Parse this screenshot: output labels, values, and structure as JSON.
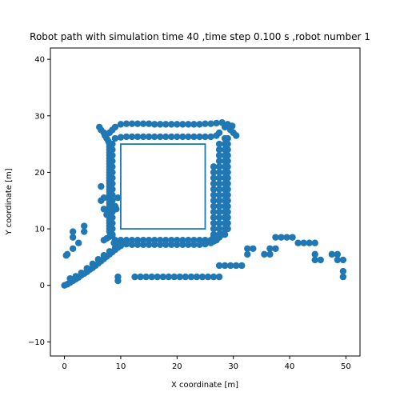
{
  "chart_data": {
    "type": "scatter",
    "title": "Robot path with simulation time 40 ,time step 0.100 s ,robot number 1",
    "xlabel": "X coordinate [m]",
    "ylabel": "Y coordinate [m]",
    "xlim": [
      -2.5,
      52.5
    ],
    "ylim": [
      -12.5,
      42
    ],
    "xticks": [
      0,
      10,
      20,
      30,
      40,
      50
    ],
    "yticks": [
      -10,
      0,
      10,
      20,
      30,
      40
    ],
    "colors": {
      "points": "#1f77b4",
      "obstacle": "#1f77b4",
      "axes": "#000000"
    },
    "obstacle": {
      "x0": 10,
      "y0": 10,
      "x1": 25,
      "y1": 25
    },
    "series": [
      {
        "name": "robot path",
        "points": [
          [
            0,
            0
          ],
          [
            0.5,
            0.2
          ],
          [
            1,
            0.5
          ],
          [
            1.5,
            0.8
          ],
          [
            2,
            1.1
          ],
          [
            2.5,
            1.4
          ],
          [
            3,
            1.8
          ],
          [
            3.5,
            2.1
          ],
          [
            4,
            2.4
          ],
          [
            4.5,
            2.8
          ],
          [
            5,
            3.1
          ],
          [
            5.5,
            3.5
          ],
          [
            6,
            3.9
          ],
          [
            6.5,
            4.3
          ],
          [
            7,
            4.7
          ],
          [
            7.5,
            5.1
          ],
          [
            8,
            5.5
          ],
          [
            8.5,
            5.9
          ],
          [
            9,
            6.3
          ],
          [
            9.5,
            6.7
          ],
          [
            10,
            7
          ],
          [
            9.2,
            7.2
          ],
          [
            9.3,
            7.8
          ],
          [
            8.8,
            7.5
          ],
          [
            0.5,
            5.5
          ],
          [
            1.5,
            6.5
          ],
          [
            2.5,
            7.5
          ],
          [
            1.5,
            8.5
          ],
          [
            1.5,
            9.5
          ],
          [
            3.5,
            9.5
          ],
          [
            3.5,
            10.5
          ],
          [
            0.3,
            5.3
          ],
          [
            1,
            1.2
          ],
          [
            2,
            1.6
          ],
          [
            3,
            2.2
          ],
          [
            4,
            3
          ],
          [
            5,
            3.8
          ],
          [
            6,
            4.6
          ],
          [
            7,
            5.3
          ],
          [
            8,
            6
          ],
          [
            9,
            6.6
          ],
          [
            7,
            8
          ],
          [
            7.5,
            8.3
          ],
          [
            8,
            8.6
          ],
          [
            8.5,
            8.8
          ],
          [
            8,
            9.5
          ],
          [
            8,
            10
          ],
          [
            8,
            10.5
          ],
          [
            8,
            11
          ],
          [
            8,
            11.5
          ],
          [
            8,
            12
          ],
          [
            8,
            12.5
          ],
          [
            8,
            13
          ],
          [
            8,
            13.5
          ],
          [
            8,
            14
          ],
          [
            8,
            14.5
          ],
          [
            8,
            15
          ],
          [
            8,
            15.5
          ],
          [
            8,
            16
          ],
          [
            8,
            16.5
          ],
          [
            8,
            17
          ],
          [
            8,
            17.5
          ],
          [
            8,
            18
          ],
          [
            8,
            18.5
          ],
          [
            8,
            19
          ],
          [
            8,
            19.5
          ],
          [
            8,
            20
          ],
          [
            8,
            20.5
          ],
          [
            8,
            21
          ],
          [
            8,
            21.5
          ],
          [
            8,
            22
          ],
          [
            8,
            22.5
          ],
          [
            8,
            23
          ],
          [
            8,
            23.5
          ],
          [
            8,
            24
          ],
          [
            8,
            24.5
          ],
          [
            8,
            25
          ],
          [
            7.8,
            25.5
          ],
          [
            7.5,
            26
          ],
          [
            7.2,
            26.5
          ],
          [
            7,
            27
          ],
          [
            6.5,
            27.5
          ],
          [
            6.2,
            28
          ],
          [
            8.5,
            9
          ],
          [
            8.5,
            10
          ],
          [
            8.5,
            11
          ],
          [
            8.5,
            12
          ],
          [
            8.5,
            13
          ],
          [
            8.5,
            14
          ],
          [
            8.5,
            15
          ],
          [
            8.5,
            16
          ],
          [
            8.5,
            17
          ],
          [
            8.5,
            18
          ],
          [
            8.5,
            19
          ],
          [
            8.5,
            20
          ],
          [
            8.5,
            21
          ],
          [
            8.5,
            22
          ],
          [
            8.5,
            23
          ],
          [
            8.5,
            24
          ],
          [
            8.5,
            25
          ],
          [
            7.5,
            12.5
          ],
          [
            7,
            13.5
          ],
          [
            6.5,
            15
          ],
          [
            7,
            15.5
          ],
          [
            9,
            14
          ],
          [
            9.5,
            15.5
          ],
          [
            9.2,
            13.5
          ],
          [
            6.5,
            17.5
          ],
          [
            9,
            26
          ],
          [
            10,
            26.2
          ],
          [
            11,
            26.3
          ],
          [
            12,
            26.3
          ],
          [
            13,
            26.3
          ],
          [
            14,
            26.3
          ],
          [
            15,
            26.3
          ],
          [
            16,
            26.3
          ],
          [
            17,
            26.3
          ],
          [
            18,
            26.3
          ],
          [
            19,
            26.3
          ],
          [
            20,
            26.3
          ],
          [
            21,
            26.3
          ],
          [
            22,
            26.3
          ],
          [
            23,
            26.3
          ],
          [
            24,
            26.3
          ],
          [
            25,
            26.3
          ],
          [
            26,
            26.3
          ],
          [
            27,
            26.5
          ],
          [
            27.5,
            27
          ],
          [
            8,
            27
          ],
          [
            8.5,
            27.5
          ],
          [
            9,
            28
          ],
          [
            10,
            28.5
          ],
          [
            11,
            28.6
          ],
          [
            12,
            28.6
          ],
          [
            13,
            28.6
          ],
          [
            14,
            28.6
          ],
          [
            15,
            28.6
          ],
          [
            16,
            28.5
          ],
          [
            17,
            28.5
          ],
          [
            18,
            28.5
          ],
          [
            19,
            28.5
          ],
          [
            20,
            28.5
          ],
          [
            21,
            28.5
          ],
          [
            22,
            28.5
          ],
          [
            23,
            28.5
          ],
          [
            24,
            28.5
          ],
          [
            25,
            28.6
          ],
          [
            26,
            28.6
          ],
          [
            27,
            28.7
          ],
          [
            28,
            28.8
          ],
          [
            29,
            28.5
          ],
          [
            29.8,
            28.2
          ],
          [
            28.5,
            28
          ],
          [
            29.5,
            27.5
          ],
          [
            30,
            27
          ],
          [
            30.5,
            26.5
          ],
          [
            28.5,
            26
          ],
          [
            28.5,
            25
          ],
          [
            28.5,
            24
          ],
          [
            28.5,
            23
          ],
          [
            28.5,
            22
          ],
          [
            28.5,
            21
          ],
          [
            28.5,
            20
          ],
          [
            28.5,
            19
          ],
          [
            28.5,
            18
          ],
          [
            28.5,
            17
          ],
          [
            28.5,
            16
          ],
          [
            28.5,
            15
          ],
          [
            28.5,
            14
          ],
          [
            28.5,
            13
          ],
          [
            28.5,
            12
          ],
          [
            28.5,
            11
          ],
          [
            28.5,
            10
          ],
          [
            28.5,
            9
          ],
          [
            29,
            26
          ],
          [
            29,
            25
          ],
          [
            29,
            24
          ],
          [
            29,
            23
          ],
          [
            29,
            22
          ],
          [
            29,
            21
          ],
          [
            29,
            20
          ],
          [
            29,
            19
          ],
          [
            29,
            18
          ],
          [
            29,
            17
          ],
          [
            29,
            16
          ],
          [
            29,
            15
          ],
          [
            29,
            14
          ],
          [
            29,
            13
          ],
          [
            29,
            12
          ],
          [
            29,
            11
          ],
          [
            29,
            10
          ],
          [
            27.5,
            25
          ],
          [
            27.5,
            24
          ],
          [
            27.5,
            23
          ],
          [
            27.5,
            22
          ],
          [
            27.5,
            21
          ],
          [
            27.5,
            20
          ],
          [
            27.5,
            19
          ],
          [
            27.5,
            18
          ],
          [
            27.5,
            17
          ],
          [
            27.5,
            16
          ],
          [
            27.5,
            15
          ],
          [
            27.5,
            14
          ],
          [
            27.5,
            13
          ],
          [
            27.5,
            12
          ],
          [
            27.5,
            11
          ],
          [
            27.5,
            10
          ],
          [
            27.5,
            9
          ],
          [
            26.5,
            21
          ],
          [
            26.5,
            20
          ],
          [
            26.5,
            19
          ],
          [
            26.5,
            18
          ],
          [
            26.5,
            17
          ],
          [
            26.5,
            16
          ],
          [
            26.5,
            15
          ],
          [
            26.5,
            14
          ],
          [
            26.5,
            13
          ],
          [
            26.5,
            12
          ],
          [
            26.5,
            11
          ],
          [
            26.5,
            10
          ],
          [
            26.5,
            9
          ],
          [
            26.5,
            8.5
          ],
          [
            28,
            9
          ],
          [
            27.5,
            8.5
          ],
          [
            27,
            8
          ],
          [
            26.5,
            7.8
          ],
          [
            9,
            8
          ],
          [
            10,
            8
          ],
          [
            11,
            8
          ],
          [
            12,
            8
          ],
          [
            13,
            8
          ],
          [
            14,
            8
          ],
          [
            15,
            8
          ],
          [
            16,
            8
          ],
          [
            17,
            8
          ],
          [
            18,
            8
          ],
          [
            19,
            8
          ],
          [
            20,
            8
          ],
          [
            21,
            8
          ],
          [
            22,
            8
          ],
          [
            23,
            8
          ],
          [
            24,
            8
          ],
          [
            25,
            8
          ],
          [
            26,
            8
          ],
          [
            10,
            7.5
          ],
          [
            11,
            7.3
          ],
          [
            12,
            7.2
          ],
          [
            13,
            7.2
          ],
          [
            14,
            7.2
          ],
          [
            15,
            7.2
          ],
          [
            16,
            7.2
          ],
          [
            17,
            7.2
          ],
          [
            18,
            7.2
          ],
          [
            19,
            7.2
          ],
          [
            20,
            7.2
          ],
          [
            21,
            7.2
          ],
          [
            22,
            7.2
          ],
          [
            23,
            7.2
          ],
          [
            24,
            7.2
          ],
          [
            25,
            7.3
          ],
          [
            26,
            7.5
          ],
          [
            9.5,
            1.5
          ],
          [
            9.5,
            0.8
          ],
          [
            12.5,
            1.5
          ],
          [
            13.5,
            1.5
          ],
          [
            14.5,
            1.5
          ],
          [
            15.5,
            1.5
          ],
          [
            16.5,
            1.5
          ],
          [
            17.5,
            1.5
          ],
          [
            18.5,
            1.5
          ],
          [
            19.5,
            1.5
          ],
          [
            20.5,
            1.5
          ],
          [
            21.5,
            1.5
          ],
          [
            22.5,
            1.5
          ],
          [
            23.5,
            1.5
          ],
          [
            24.5,
            1.5
          ],
          [
            25.5,
            1.5
          ],
          [
            26.5,
            1.5
          ],
          [
            27.5,
            1.5
          ],
          [
            27.5,
            3.5
          ],
          [
            28.5,
            3.5
          ],
          [
            29.5,
            3.5
          ],
          [
            30.5,
            3.5
          ],
          [
            31.5,
            3.5
          ],
          [
            32.5,
            6.5
          ],
          [
            32.5,
            5.5
          ],
          [
            33.5,
            6.5
          ],
          [
            35.5,
            5.5
          ],
          [
            36.5,
            6.5
          ],
          [
            36.5,
            5.5
          ],
          [
            37.5,
            6.5
          ],
          [
            37.5,
            8.5
          ],
          [
            38.5,
            8.5
          ],
          [
            39.5,
            8.5
          ],
          [
            40.5,
            8.5
          ],
          [
            41.5,
            7.5
          ],
          [
            42.5,
            7.5
          ],
          [
            43.5,
            7.5
          ],
          [
            44.5,
            7.5
          ],
          [
            44.5,
            5.5
          ],
          [
            44.5,
            4.5
          ],
          [
            45.5,
            4.5
          ],
          [
            47.5,
            5.5
          ],
          [
            48.5,
            5.5
          ],
          [
            48.5,
            4.5
          ],
          [
            49.5,
            4.5
          ],
          [
            49.5,
            2.5
          ],
          [
            49.5,
            1.5
          ]
        ]
      }
    ]
  }
}
